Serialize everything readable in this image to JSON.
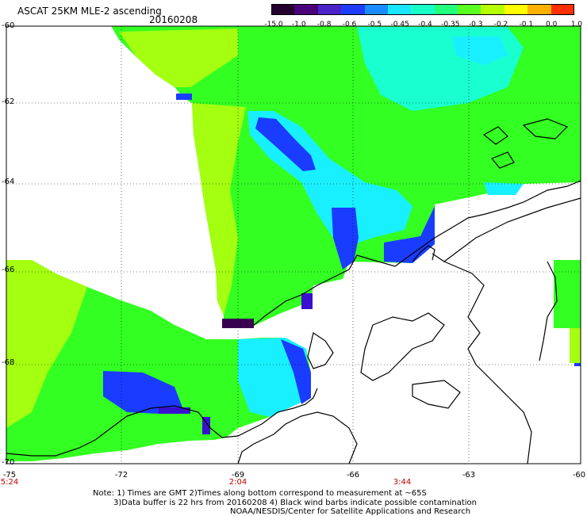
{
  "header": {
    "title": "ASCAT 25KM MLE-2 ascending",
    "date": "20160208"
  },
  "colorbar": {
    "labels": [
      "-15.0",
      "-1.0",
      "-0.8",
      "-0.6",
      "-0.5",
      "-0.45",
      "-0.4",
      "-0.35",
      "-0.3",
      "-0.2",
      "-0.1",
      "0.0",
      "1.0"
    ],
    "colors": [
      "#24002e",
      "#4a007a",
      "#4a22c8",
      "#1e3cff",
      "#1a8cff",
      "#19e6ff",
      "#19ffc8",
      "#22ff7a",
      "#5aff22",
      "#b4ff00",
      "#ffff00",
      "#ffb000",
      "#ff3000"
    ]
  },
  "axes": {
    "lat_labels": [
      "-60",
      "-62",
      "-64",
      "-66",
      "-68",
      "-70"
    ],
    "lon_labels": [
      "-75",
      "-72",
      "-69",
      "-66",
      "-63",
      "-60"
    ]
  },
  "times": [
    "5:24",
    "2:04",
    "3:44"
  ],
  "notes": [
    "Note: 1) Times are GMT 2)Times along bottom correspond to measurement at ~65S",
    "3)Data buffer is 22 hrs from 20160208 4) Black wind barbs indicate possible contamination",
    "NOAA/NESDIS/Center for Satellite Applications and Research"
  ],
  "palette": {
    "green": "#33ff22",
    "lime": "#a4ff10",
    "cyan": "#19f0ff",
    "aqua": "#19ffd0",
    "blue": "#1a3cff",
    "indigo": "#3a10d0",
    "purple": "#3a0050"
  }
}
